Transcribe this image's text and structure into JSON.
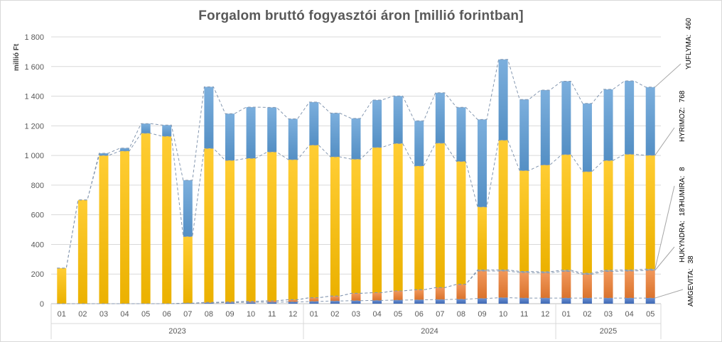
{
  "chart_data": {
    "type": "bar",
    "stacked": true,
    "title": "Forgalom bruttó fogyasztói áron [millió forintban]",
    "ylabel": "millió Ft",
    "xlabel": "",
    "ylim": [
      0,
      1800
    ],
    "yticks": [
      0,
      200,
      400,
      600,
      800,
      1000,
      1200,
      1400,
      1600,
      1800
    ],
    "ytick_labels": [
      "0",
      "200",
      "400",
      "600",
      "800",
      "1 000",
      "1 200",
      "1 400",
      "1 600",
      "1 800"
    ],
    "grid": true,
    "legend": "right, inline labels",
    "categories": [
      "01",
      "02",
      "03",
      "04",
      "05",
      "06",
      "07",
      "08",
      "09",
      "10",
      "11",
      "12",
      "01",
      "02",
      "03",
      "04",
      "05",
      "06",
      "07",
      "08",
      "09",
      "10",
      "11",
      "12",
      "01",
      "02",
      "03",
      "04",
      "05"
    ],
    "years": [
      {
        "label": "2023",
        "count": 12
      },
      {
        "label": "2024",
        "count": 12
      },
      {
        "label": "2025",
        "count": 5
      }
    ],
    "series": [
      {
        "name": "AMGEVITA",
        "color": "#4472c4",
        "values": [
          0,
          0,
          0,
          0,
          0,
          0,
          3,
          5,
          7,
          9,
          10,
          12,
          15,
          18,
          20,
          22,
          24,
          26,
          28,
          30,
          35,
          40,
          38,
          38,
          38,
          38,
          38,
          38,
          38
        ]
      },
      {
        "name": "HUKYNDRA",
        "color": "#ed7d31",
        "values": [
          0,
          0,
          0,
          0,
          0,
          0,
          0,
          3,
          5,
          7,
          9,
          15,
          25,
          33,
          50,
          52,
          62,
          68,
          80,
          100,
          185,
          180,
          172,
          170,
          180,
          160,
          180,
          182,
          187
        ]
      },
      {
        "name": "HUMIRA",
        "color": "#a5a5a5",
        "values": [
          0,
          0,
          0,
          0,
          0,
          0,
          0,
          0,
          0,
          0,
          0,
          0,
          0,
          0,
          0,
          0,
          0,
          0,
          0,
          0,
          8,
          8,
          8,
          8,
          8,
          8,
          8,
          8,
          8
        ]
      },
      {
        "name": "HYRIMOZ",
        "color": "#ffc000",
        "values": [
          240,
          700,
          1000,
          1030,
          1150,
          1130,
          450,
          1040,
          955,
          965,
          1005,
          945,
          1030,
          940,
          905,
          980,
          995,
          835,
          975,
          830,
          425,
          875,
          680,
          720,
          780,
          685,
          740,
          780,
          768
        ]
      },
      {
        "name": "YUFLYMA",
        "color": "#5b9bd5",
        "values": [
          0,
          0,
          15,
          20,
          65,
          75,
          380,
          415,
          315,
          345,
          300,
          275,
          290,
          295,
          275,
          320,
          320,
          305,
          340,
          365,
          590,
          545,
          480,
          505,
          495,
          460,
          480,
          495,
          460
        ]
      }
    ],
    "right_labels": [
      {
        "series": "AMGEVITA",
        "text": "AMGEVITA:",
        "value": "38"
      },
      {
        "series": "HUKYNDRA",
        "text": "HUKYNDRA:",
        "value": "187"
      },
      {
        "series": "HUMIRA",
        "text": "HUMIRA:",
        "value": "8"
      },
      {
        "series": "HYRIMOZ",
        "text": "HYRIMOZ:",
        "value": "768"
      },
      {
        "series": "YUFLYMA",
        "text": "YUFLYMA:",
        "value": "460"
      }
    ]
  }
}
